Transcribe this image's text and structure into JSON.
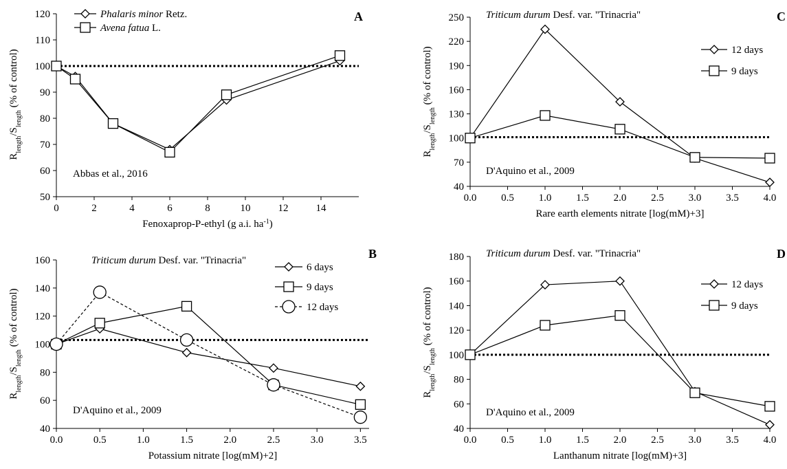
{
  "chart_data": [
    {
      "panel": "A",
      "type": "line",
      "annotation": "Abbas et al., 2016",
      "xlabel": "Fenoxaprop-P-ethyl (g a.i. ha-1)",
      "ylabel": "Rlength/Slength (% of control)",
      "xlim": [
        0,
        16
      ],
      "ylim": [
        50,
        120
      ],
      "xticks": [
        0,
        2,
        4,
        6,
        8,
        10,
        12,
        14
      ],
      "yticks": [
        50,
        60,
        70,
        80,
        90,
        100,
        110,
        120
      ],
      "tick_decimals": 0,
      "reference_line": 100,
      "legend_placement": "top-left",
      "x": [
        0,
        1,
        3,
        6,
        9,
        15
      ],
      "series": [
        {
          "name": "Phalaris minor Retz.",
          "name_italic": "Phalaris minor",
          "name_rest": " Retz.",
          "marker": "diamond",
          "dash": "solid",
          "values": [
            100,
            96,
            78,
            68,
            87,
            102
          ]
        },
        {
          "name": "Avena fatua L.",
          "name_italic": "Avena fatua",
          "name_rest": " L.",
          "marker": "square",
          "dash": "solid",
          "values": [
            100,
            95,
            78,
            67,
            89,
            104
          ]
        }
      ]
    },
    {
      "panel": "B",
      "type": "line",
      "title_italic": "Triticum durum",
      "title_rest": " Desf. var. ''Trinacria\"",
      "annotation": "D'Aquino et al., 2009",
      "xlabel": "Potassium nitrate [log(mM)+2]",
      "ylabel": "Rlength/Slength (% of control)",
      "xlim": [
        0,
        3.6
      ],
      "ylim": [
        40,
        160
      ],
      "xticks": [
        0,
        0.5,
        1,
        1.5,
        2,
        2.5,
        3,
        3.5
      ],
      "yticks": [
        40,
        60,
        80,
        100,
        120,
        140,
        160
      ],
      "tick_decimals": 1,
      "reference_line": 103,
      "legend_placement": "top-right",
      "x": [
        0,
        0.5,
        1.5,
        2.5,
        3.5
      ],
      "series": [
        {
          "name": "6 days",
          "marker": "diamond",
          "dash": "solid",
          "values": [
            100,
            111,
            94,
            83,
            70
          ]
        },
        {
          "name": "9 days",
          "marker": "square",
          "dash": "solid",
          "values": [
            100,
            115,
            127,
            71,
            57
          ]
        },
        {
          "name": "12 days",
          "marker": "circle",
          "dash": "dashed",
          "values": [
            100,
            137,
            103,
            71,
            48
          ]
        }
      ]
    },
    {
      "panel": "C",
      "type": "line",
      "title_italic": "Triticum durum",
      "title_rest": " Desf. var. ''Trinacria\"",
      "annotation": "D'Aquino et al., 2009",
      "xlabel": "Rare earth elements nitrate [log(mM)+3]",
      "ylabel": "Rlength/Slength (% of control)",
      "xlim": [
        0,
        4
      ],
      "ylim": [
        40,
        250
      ],
      "xticks": [
        0,
        0.5,
        1,
        1.5,
        2,
        2.5,
        3,
        3.5,
        4
      ],
      "yticks": [
        40,
        70,
        100,
        130,
        160,
        190,
        220,
        250
      ],
      "tick_decimals": 1,
      "reference_line": 101,
      "legend_placement": "top-right",
      "x": [
        0,
        1,
        2,
        3,
        4
      ],
      "series": [
        {
          "name": "12 days",
          "marker": "diamond",
          "dash": "solid",
          "values": [
            100,
            235,
            145,
            75,
            45
          ]
        },
        {
          "name": "9 days",
          "marker": "square",
          "dash": "solid",
          "values": [
            100,
            128,
            111,
            76,
            75
          ]
        }
      ]
    },
    {
      "panel": "D",
      "type": "line",
      "title_italic": "Triticum durum",
      "title_rest": " Desf. var. ''Trinacria\"",
      "annotation": "D'Aquino et al., 2009",
      "xlabel": "Lanthanum nitrate [log(mM)+3]",
      "ylabel": "Rlength/Slength (% of control)",
      "xlim": [
        0,
        4
      ],
      "ylim": [
        40,
        180
      ],
      "xticks": [
        0,
        0.5,
        1,
        1.5,
        2,
        2.5,
        3,
        3.5,
        4
      ],
      "yticks": [
        40,
        60,
        80,
        100,
        120,
        140,
        160,
        180
      ],
      "tick_decimals": 1,
      "reference_line": 100,
      "legend_placement": "top-right",
      "x": [
        0,
        1,
        2,
        3,
        4
      ],
      "series": [
        {
          "name": "12 days",
          "marker": "diamond",
          "dash": "solid",
          "values": [
            100,
            157,
            160,
            70,
            43
          ]
        },
        {
          "name": "9 days",
          "marker": "square",
          "dash": "solid",
          "values": [
            100,
            124,
            132,
            69,
            58
          ]
        }
      ]
    }
  ]
}
